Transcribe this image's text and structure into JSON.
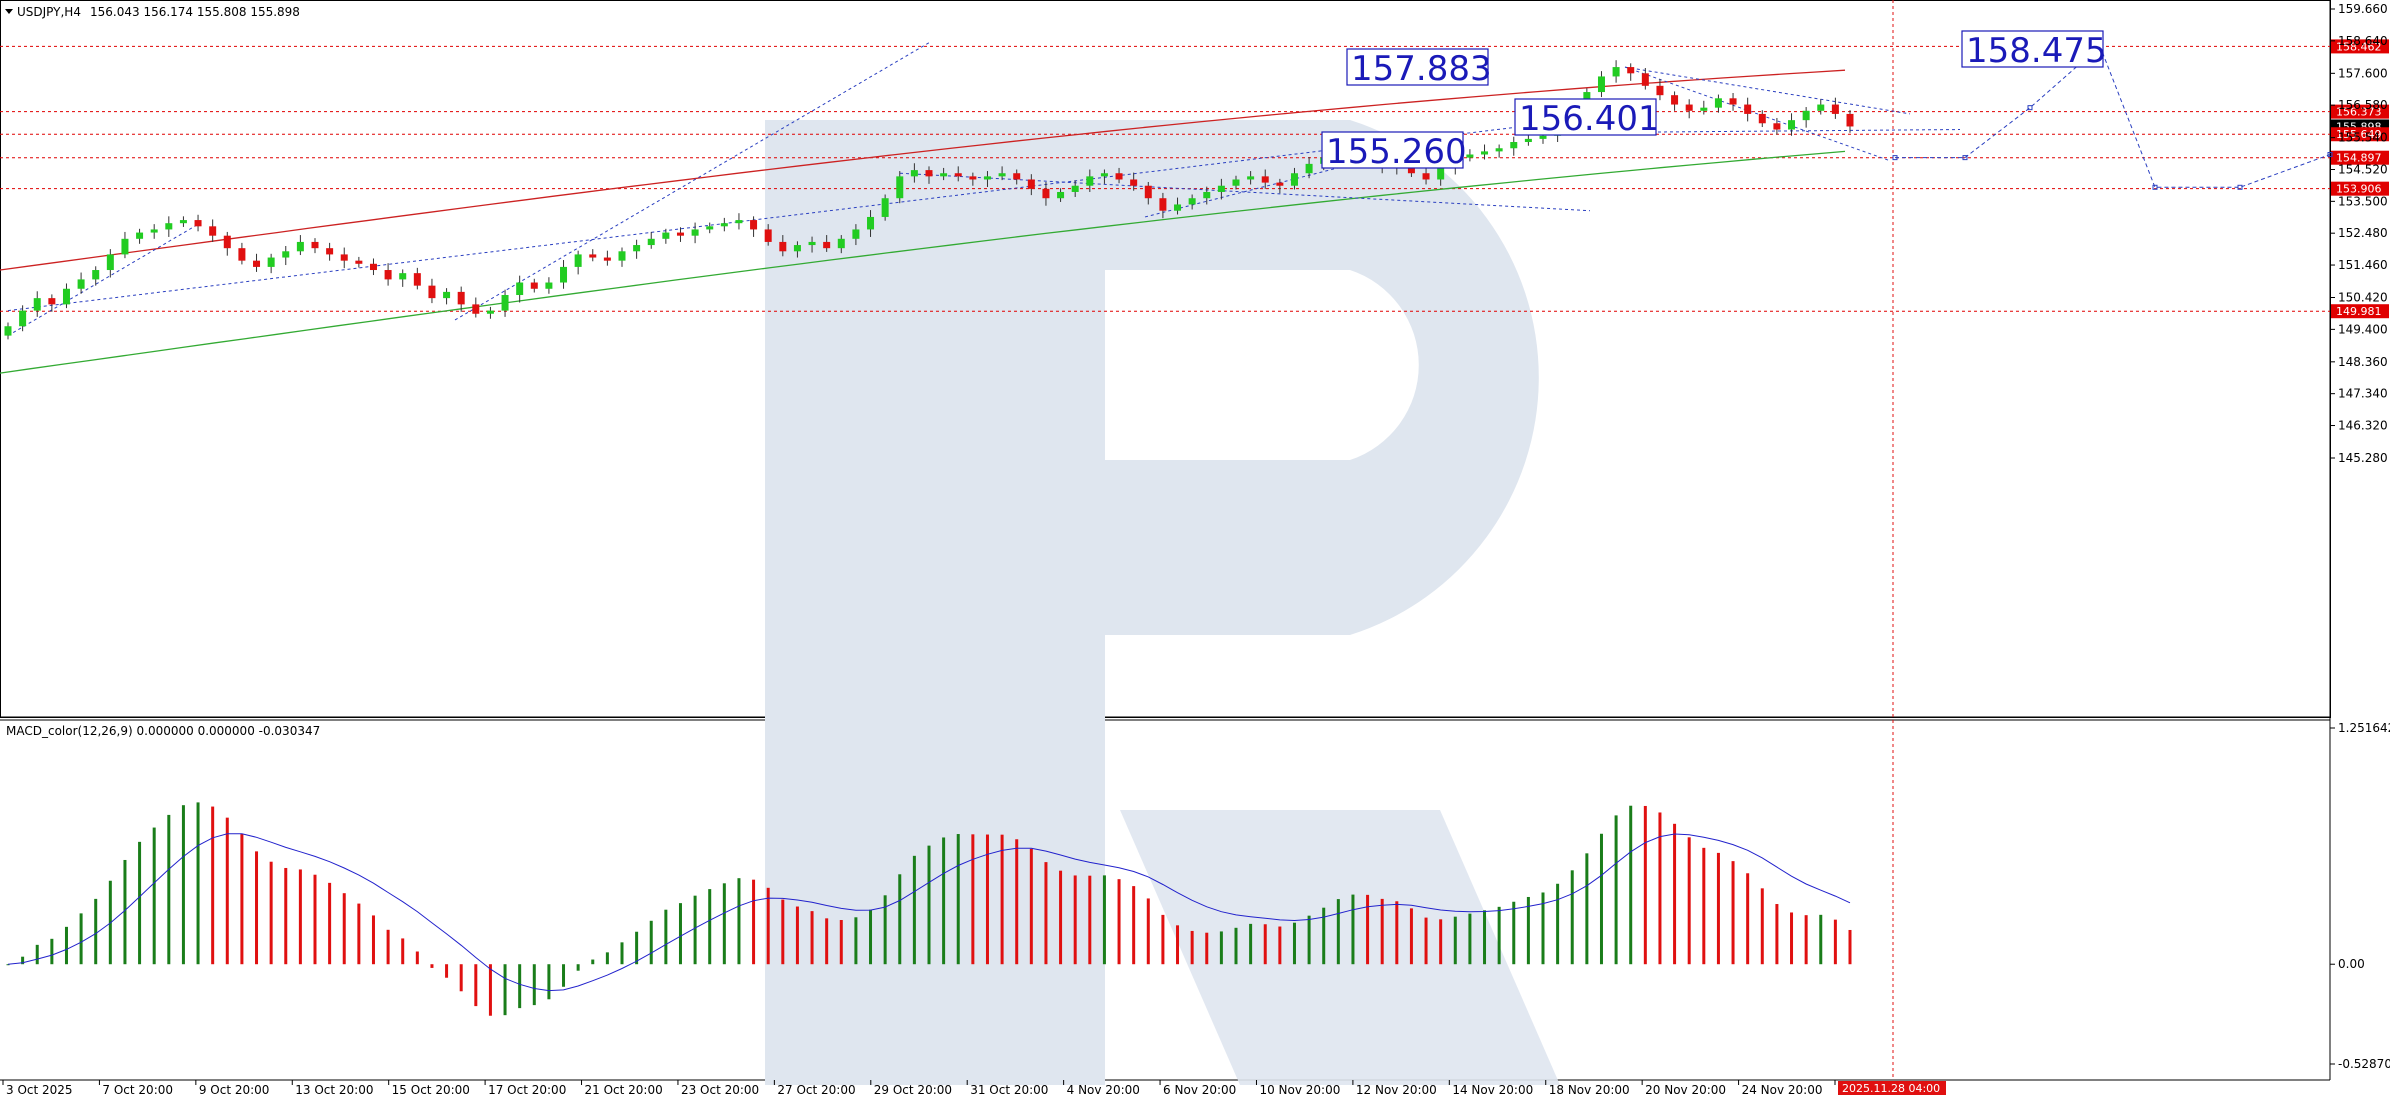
{
  "chart_data": [
    {
      "type": "candlestick",
      "title": "USDJPY,H4",
      "ohlc_text": "156.043 156.174 155.808 155.898",
      "symbol": "USDJPY",
      "timeframe": "H4",
      "ylim": [
        145.0,
        159.9
      ],
      "y_ticks": [
        "159.660",
        "158.640",
        "157.600",
        "156.580",
        "155.540",
        "154.520",
        "153.500",
        "152.480",
        "151.460",
        "150.420",
        "149.400",
        "148.360",
        "147.340",
        "146.320",
        "145.280"
      ],
      "x_tick_labels": [
        "3 Oct 2025",
        "7 Oct 20:00",
        "9 Oct 20:00",
        "13 Oct 20:00",
        "15 Oct 20:00",
        "17 Oct 20:00",
        "21 Oct 20:00",
        "23 Oct 20:00",
        "27 Oct 20:00",
        "29 Oct 20:00",
        "31 Oct 20:00",
        "4 Nov 20:00",
        "6 Nov 20:00",
        "10 Nov 20:00",
        "12 Nov 20:00",
        "14 Nov 20:00",
        "18 Nov 20:00",
        "20 Nov 20:00",
        "24 Nov 20:00",
        "26"
      ],
      "horizontal_levels": [
        {
          "value": 158.462,
          "label": "158.462",
          "color": "#e00000"
        },
        {
          "value": 156.373,
          "label": "156.373",
          "color": "#e00000"
        },
        {
          "value": 155.898,
          "label": "155.898",
          "color": "#000000"
        },
        {
          "value": 155.649,
          "label": "155.649",
          "color": "#e00000"
        },
        {
          "value": 154.897,
          "label": "154.897",
          "color": "#e00000"
        },
        {
          "value": 153.906,
          "label": "153.906",
          "color": "#e00000"
        },
        {
          "value": 149.981,
          "label": "149.981",
          "color": "#e00000"
        }
      ],
      "annotations": [
        {
          "text": "157.883",
          "value": 157.883
        },
        {
          "text": "156.401",
          "value": 156.401
        },
        {
          "text": "155.260",
          "value": 155.26
        },
        {
          "text": "158.475",
          "value": 158.475
        }
      ],
      "cursor_time_label": "2025.11.28 04:00",
      "closes": [
        149.5,
        150.0,
        150.4,
        150.2,
        150.7,
        151.0,
        151.3,
        151.8,
        152.3,
        152.5,
        152.6,
        152.8,
        152.9,
        152.7,
        152.4,
        152.0,
        151.6,
        151.4,
        151.7,
        151.9,
        152.2,
        152.0,
        151.8,
        151.6,
        151.5,
        151.3,
        151.0,
        151.2,
        150.8,
        150.4,
        150.6,
        150.2,
        149.9,
        150.0,
        150.5,
        150.9,
        150.7,
        150.9,
        151.4,
        151.8,
        151.7,
        151.6,
        151.9,
        152.1,
        152.3,
        152.5,
        152.4,
        152.6,
        152.7,
        152.8,
        152.9,
        152.6,
        152.2,
        151.9,
        152.1,
        152.2,
        152.0,
        152.3,
        152.6,
        153.0,
        153.6,
        154.3,
        154.5,
        154.3,
        154.4,
        154.3,
        154.2,
        154.3,
        154.4,
        154.2,
        153.9,
        153.6,
        153.8,
        154.0,
        154.3,
        154.4,
        154.2,
        154.0,
        153.6,
        153.2,
        153.4,
        153.6,
        153.8,
        154.0,
        154.2,
        154.3,
        154.1,
        154.0,
        154.4,
        154.7,
        154.9,
        155.1,
        155.0,
        154.8,
        154.6,
        154.7,
        154.4,
        154.2,
        154.6,
        154.9,
        155.0,
        155.1,
        155.2,
        155.4,
        155.5,
        155.6,
        156.0,
        156.5,
        157.0,
        157.5,
        157.8,
        157.6,
        157.2,
        156.9,
        156.6,
        156.4,
        156.5,
        156.8,
        156.6,
        156.3,
        156.0,
        155.8,
        156.1,
        156.4,
        156.6,
        156.3,
        155.898
      ],
      "series": [
        {
          "name": "MA 200",
          "color": "#cc2222",
          "start": 151.3,
          "end": 157.7
        },
        {
          "name": "MA",
          "color": "#33aa33",
          "start": 148.0,
          "end": 155.1
        }
      ]
    },
    {
      "type": "bar",
      "title": "MACD_color(12,26,9) 0.000000 0.000000 -0.030347",
      "ylim": [
        -0.528703,
        1.251642
      ],
      "y_ticks": [
        "1.251642",
        "0.00",
        "-0.528703"
      ],
      "series": [
        {
          "name": "MACD",
          "up_color": "#1a7d1a",
          "down_color": "#e01010"
        },
        {
          "name": "Signal",
          "color": "#2222cc"
        }
      ]
    }
  ]
}
